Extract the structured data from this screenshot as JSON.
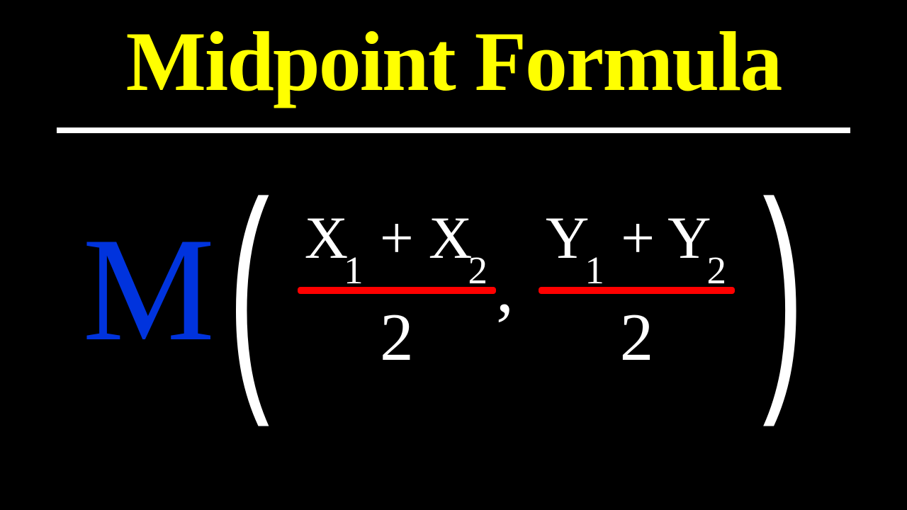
{
  "title": {
    "text": "Midpoint Formula",
    "color": "#ffff00",
    "fontsize": 120,
    "font_family": "Comic Sans MS"
  },
  "underline": {
    "color": "#ffffff",
    "thickness": 8
  },
  "background_color": "#000000",
  "formula": {
    "label": "M",
    "label_color": "#0033dd",
    "label_fontsize": 210,
    "paren_color": "#ffffff",
    "text_color": "#ffffff",
    "fraction_line_color": "#ff0000",
    "numerator_fontsize": 85,
    "denominator_fontsize": 95,
    "parts": [
      {
        "numerator_display": "X₁ + X₂",
        "x_var": "X",
        "sub1": "1",
        "plus": "+",
        "sub2": "2",
        "denominator": "2"
      },
      {
        "numerator_display": "Y₁ + Y₂",
        "x_var": "Y",
        "sub1": "1",
        "plus": "+",
        "sub2": "2",
        "denominator": "2"
      }
    ],
    "comma": ","
  }
}
